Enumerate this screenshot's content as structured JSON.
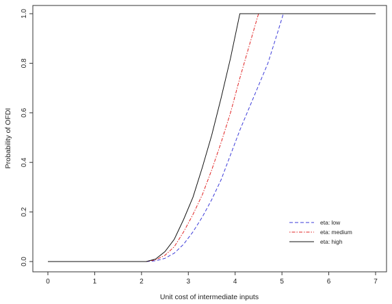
{
  "chart_data": {
    "type": "line",
    "title": "",
    "xlabel": "Unit cost of intermediate inputs",
    "ylabel": "Probability of OFDI",
    "xlim": [
      0,
      7
    ],
    "ylim": [
      0,
      1
    ],
    "x_ticks": [
      0,
      1,
      2,
      3,
      4,
      5,
      6,
      7
    ],
    "y_ticks": [
      0.0,
      0.2,
      0.4,
      0.6,
      0.8,
      1.0
    ],
    "x_tick_labels": [
      "0",
      "1",
      "2",
      "3",
      "4",
      "5",
      "6",
      "7"
    ],
    "y_tick_labels": [
      "0.0",
      "0.2",
      "0.4",
      "0.6",
      "0.8",
      "1.0"
    ],
    "grid": false,
    "legend_position": "bottom-right",
    "series": [
      {
        "name": "eta: low",
        "color": "#3b3bd9",
        "dash": "dashed",
        "x": [
          0,
          2.1,
          2.3,
          2.5,
          2.7,
          2.9,
          3.1,
          3.3,
          3.5,
          3.7,
          3.9,
          4.1,
          4.3,
          4.5,
          4.7,
          4.9,
          5.03,
          7
        ],
        "y": [
          0,
          0,
          0.003,
          0.013,
          0.034,
          0.07,
          0.12,
          0.18,
          0.25,
          0.33,
          0.43,
          0.53,
          0.62,
          0.71,
          0.8,
          0.92,
          1,
          1
        ]
      },
      {
        "name": "eta: medium",
        "color": "#e02020",
        "dash": "dotdash",
        "x": [
          0,
          2.1,
          2.3,
          2.5,
          2.7,
          2.9,
          3.1,
          3.3,
          3.5,
          3.7,
          3.9,
          4.1,
          4.3,
          4.5,
          7
        ],
        "y": [
          0,
          0,
          0.007,
          0.025,
          0.06,
          0.12,
          0.19,
          0.27,
          0.37,
          0.48,
          0.6,
          0.74,
          0.87,
          1,
          1
        ]
      },
      {
        "name": "eta: high",
        "color": "#111111",
        "dash": "solid",
        "x": [
          0,
          2.1,
          2.3,
          2.5,
          2.7,
          2.9,
          3.1,
          3.3,
          3.5,
          3.7,
          3.9,
          4.1,
          7
        ],
        "y": [
          0,
          0,
          0.01,
          0.04,
          0.09,
          0.17,
          0.26,
          0.38,
          0.51,
          0.66,
          0.82,
          1,
          1
        ]
      }
    ]
  }
}
